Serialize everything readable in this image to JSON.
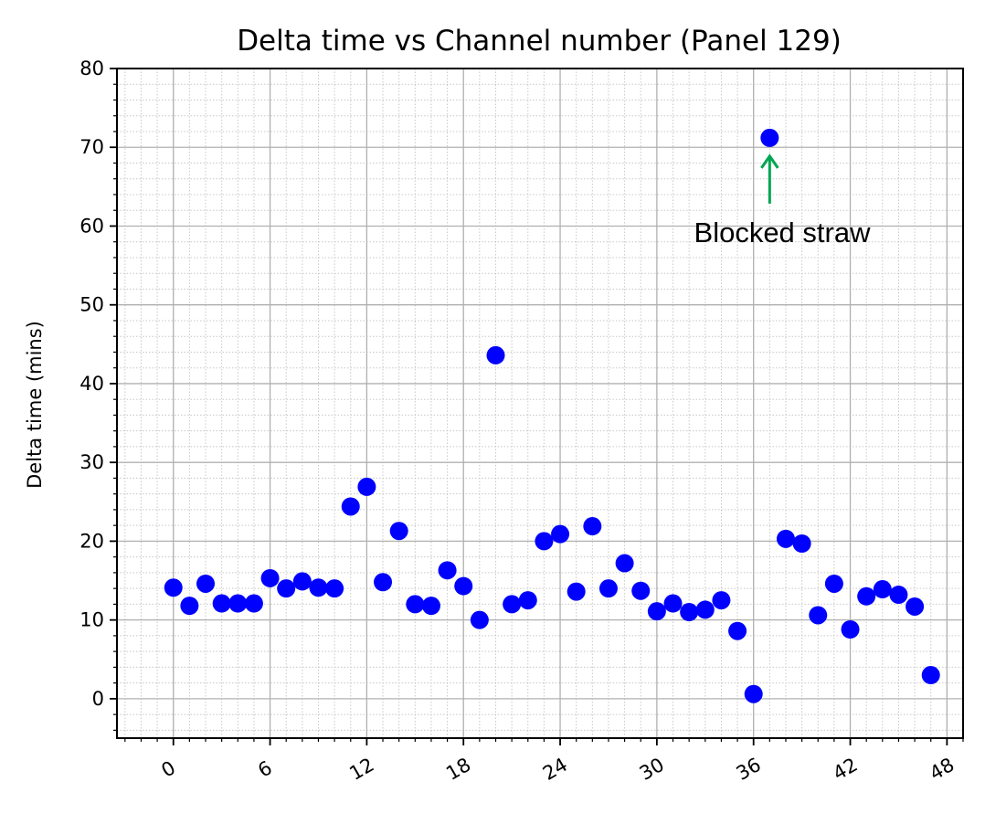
{
  "chart_data": {
    "type": "scatter",
    "title": "Delta time vs Channel number (Panel 129)",
    "xlabel": "",
    "ylabel": "Delta time (mins)",
    "xlim": [
      -3.5,
      49
    ],
    "ylim": [
      -5,
      80
    ],
    "x_ticks": [
      0,
      6,
      12,
      18,
      24,
      30,
      36,
      42,
      48
    ],
    "y_ticks": [
      0,
      10,
      20,
      30,
      40,
      50,
      60,
      70,
      80
    ],
    "grid": true,
    "minor_grid": true,
    "marker_color": "#0000ff",
    "series": [
      {
        "x": [
          0,
          1,
          2,
          3,
          4,
          5,
          6,
          7,
          8,
          9,
          10,
          11,
          12,
          13,
          14,
          15,
          16,
          17,
          18,
          19,
          20,
          21,
          22,
          23,
          24,
          25,
          26,
          27,
          28,
          29,
          30,
          31,
          32,
          33,
          34,
          35,
          36,
          37,
          38,
          39,
          40,
          41,
          42,
          43,
          44,
          45,
          46,
          47
        ],
        "values": [
          14.1,
          11.8,
          14.6,
          12.1,
          12.1,
          12.1,
          15.3,
          14.0,
          14.9,
          14.1,
          14.0,
          24.4,
          26.9,
          14.8,
          21.3,
          12.0,
          11.8,
          16.3,
          14.3,
          10.0,
          43.6,
          12.0,
          12.5,
          20.0,
          20.9,
          13.6,
          21.9,
          14.0,
          17.2,
          13.7,
          11.1,
          12.1,
          11.0,
          11.3,
          12.5,
          8.6,
          0.6,
          71.2,
          20.3,
          19.7,
          10.6,
          14.6,
          8.8,
          13.0,
          13.9,
          13.2,
          11.7,
          3.0
        ]
      }
    ],
    "annotation": {
      "text": "Blocked straw",
      "target_x": 37,
      "target_y": 71.2,
      "arrow_color": "#00a651"
    }
  }
}
